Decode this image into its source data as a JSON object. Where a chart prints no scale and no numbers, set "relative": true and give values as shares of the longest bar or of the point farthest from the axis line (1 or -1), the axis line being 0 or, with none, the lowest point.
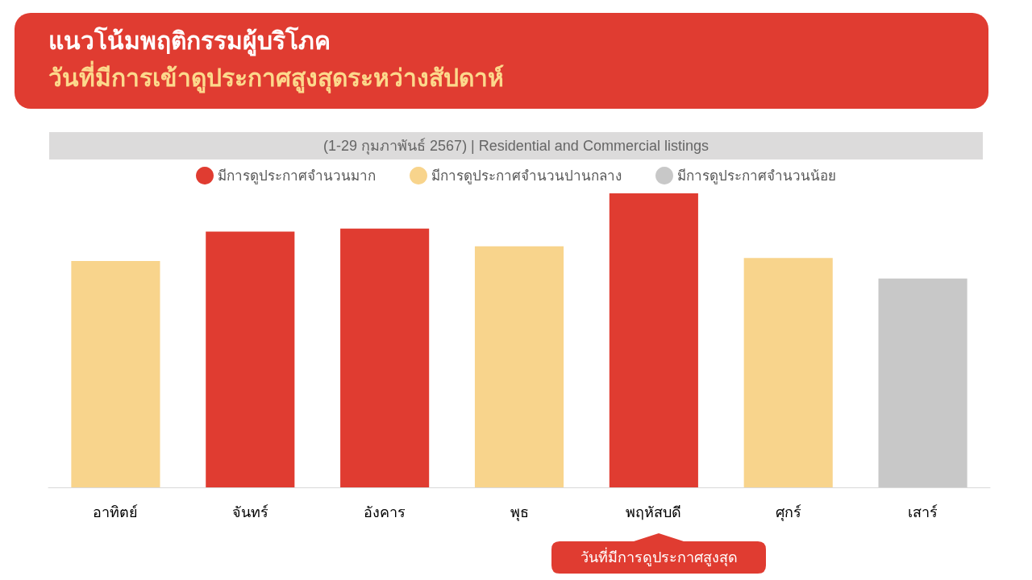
{
  "chart_data": {
    "type": "bar",
    "title": "แนวโน้มพฤติกรรมผู้บริโภค",
    "subtitle": "วันที่มีการเข้าดูประกาศสูงสุดระหว่างสัปดาห์",
    "categories": [
      "อาทิตย์",
      "จันทร์",
      "อังคาร",
      "พุธ",
      "พฤหัสบดี",
      "ศุกร์",
      "เสาร์"
    ],
    "series": [
      {
        "name": "มีการดูประกาศจำนวนมาก",
        "color": "#e03c31",
        "values": [
          null,
          0.87,
          0.88,
          null,
          1,
          null,
          null
        ]
      },
      {
        "name": "มีการดูประกาศจำนวนปานกลาง",
        "color": "#f8d48c",
        "values": [
          0.77,
          null,
          null,
          0.82,
          null,
          0.78,
          null
        ]
      },
      {
        "name": "มีการดูประกาศจำนวนน้อย",
        "color": "#c8c8c8",
        "values": [
          null,
          null,
          null,
          null,
          null,
          null,
          0.71
        ]
      }
    ],
    "relative": true,
    "legend": "top",
    "annotations": [
      "(1-29 กุมภาพันธ์ 2567) | Residential and Commercial listings",
      "วันที่มีการดูประกาศสูงสุด"
    ]
  }
}
